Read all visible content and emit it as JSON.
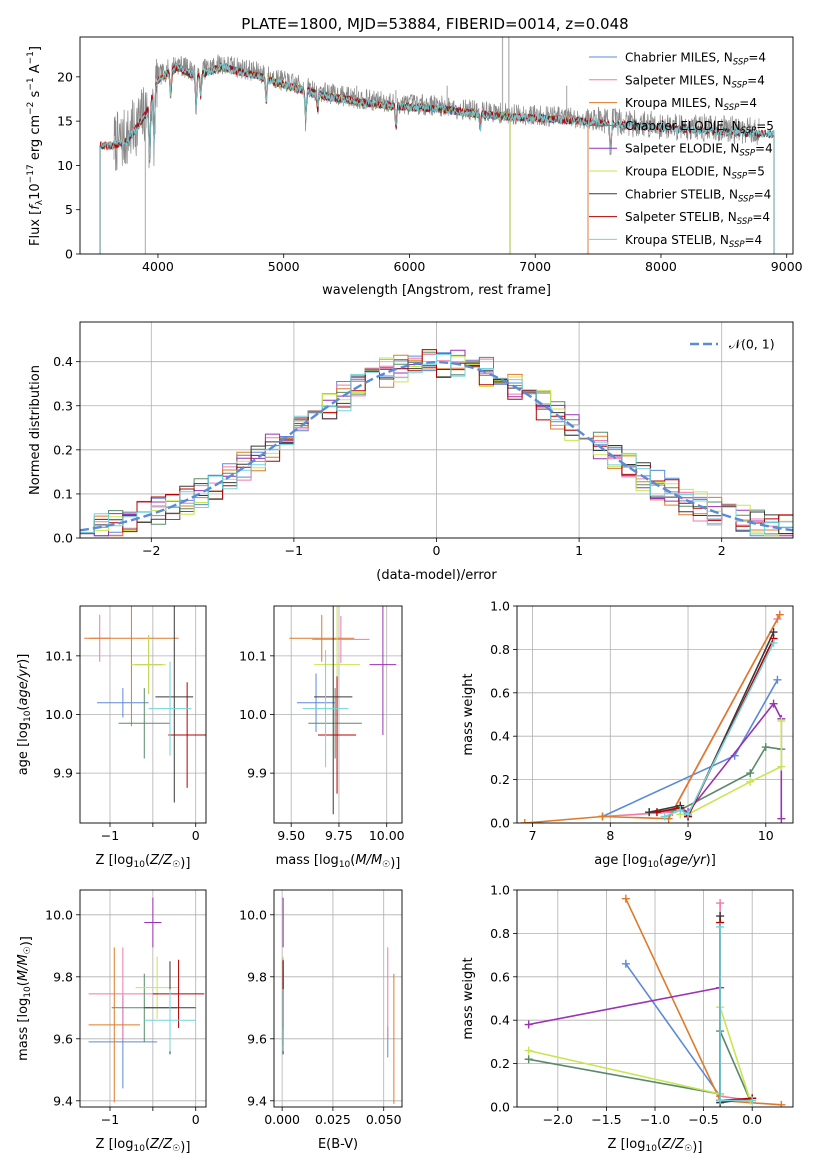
{
  "title": "PLATE=1800, MJD=53884, FIBERID=0014, z=0.048",
  "colors": {
    "Chabrier MILES": "#5b8ad8",
    "Salpeter MILES": "#f07aa8",
    "Kroupa MILES": "#e07a28",
    "Chabrier ELODIE": "#5a8a6a",
    "Salpeter ELODIE": "#9a32b4",
    "Kroupa ELODIE": "#c8e650",
    "Chabrier STELIB": "#3a3a3a",
    "Salpeter STELIB": "#b40000",
    "Kroupa STELIB": "#70d4dc",
    "data": "#888888",
    "normal": "#5b8ad8",
    "grid": "#b0b0b0"
  },
  "chart_data": [
    {
      "id": "spectrum",
      "type": "line",
      "title": "PLATE=1800, MJD=53884, FIBERID=0014, z=0.048",
      "xlabel": "wavelength [Angstrom, rest frame]",
      "ylabel": "Flux [f_λ10^-17 erg cm^-2 s^-1 A^-1]",
      "xlim": [
        3380,
        9050
      ],
      "ylim": [
        0,
        24.5
      ],
      "xticks": [
        4000,
        5000,
        6000,
        7000,
        8000,
        9000
      ],
      "yticks": [
        0,
        5,
        10,
        15,
        20
      ],
      "grid": false,
      "legend_position": "upper-right",
      "legend": [
        {
          "name": "Chabrier MILES",
          "nssp": "4"
        },
        {
          "name": "Salpeter MILES",
          "nssp": "4"
        },
        {
          "name": "Kroupa MILES",
          "nssp": "4"
        },
        {
          "name": "Chabrier ELODIE",
          "nssp": "5"
        },
        {
          "name": "Salpeter ELODIE",
          "nssp": "4"
        },
        {
          "name": "Kroupa ELODIE",
          "nssp": "5"
        },
        {
          "name": "Chabrier STELIB",
          "nssp": "4"
        },
        {
          "name": "Salpeter STELIB",
          "nssp": "4"
        },
        {
          "name": "Kroupa STELIB",
          "nssp": "4"
        }
      ],
      "data_range": [
        3650,
        8780
      ],
      "continuum": [
        [
          3650,
          12.5
        ],
        [
          3750,
          13.0
        ],
        [
          3900,
          16.0
        ],
        [
          4000,
          20.0
        ],
        [
          4150,
          21.5
        ],
        [
          4300,
          20.5
        ],
        [
          4500,
          21.5
        ],
        [
          4800,
          20.5
        ],
        [
          5000,
          19.5
        ],
        [
          5300,
          18.3
        ],
        [
          5600,
          17.5
        ],
        [
          5900,
          17.0
        ],
        [
          6200,
          16.8
        ],
        [
          6500,
          16.2
        ],
        [
          6800,
          15.8
        ],
        [
          7200,
          15.5
        ],
        [
          7600,
          15.0
        ],
        [
          8000,
          14.5
        ],
        [
          8400,
          14.2
        ],
        [
          8780,
          13.8
        ]
      ],
      "absorption_lines": [
        [
          3934,
          8
        ],
        [
          3969,
          7
        ],
        [
          4101,
          3
        ],
        [
          4304,
          4
        ],
        [
          4340,
          3
        ],
        [
          4861,
          3
        ],
        [
          5175,
          4
        ],
        [
          5270,
          2
        ],
        [
          5893,
          3
        ],
        [
          6563,
          2
        ],
        [
          7600,
          4
        ]
      ],
      "spikes": [
        [
          6740,
          24.5
        ],
        [
          6790,
          24.5
        ],
        [
          5580,
          19.0
        ],
        [
          5892,
          18.5
        ],
        [
          6300,
          19.0
        ],
        [
          7250,
          19.0
        ]
      ],
      "model_ranges": {
        "Chabrier MILES": [
          3540,
          7420
        ],
        "Salpeter MILES": [
          3540,
          7420
        ],
        "Kroupa MILES": [
          3540,
          7420
        ],
        "Chabrier ELODIE": [
          3900,
          6800
        ],
        "Salpeter ELODIE": [
          3900,
          6800
        ],
        "Kroupa ELODIE": [
          3900,
          6800
        ],
        "Chabrier STELIB": [
          3200,
          9300
        ],
        "Salpeter STELIB": [
          3200,
          9300
        ],
        "Kroupa STELIB": [
          3200,
          9300
        ]
      }
    },
    {
      "id": "residuals",
      "type": "histogram",
      "xlabel": "(data-model)/error",
      "ylabel": "Normed distribution",
      "xlim": [
        -2.5,
        2.5
      ],
      "ylim": [
        0,
        0.49
      ],
      "xticks": [
        -2,
        -1,
        0,
        1,
        2
      ],
      "yticks": [
        0.0,
        0.1,
        0.2,
        0.3,
        0.4
      ],
      "grid": true,
      "legend_position": "upper-right",
      "legend": [
        "𝒩(0, 1)"
      ],
      "bins": {
        "start": -2.5,
        "width": 0.1,
        "count": 50
      },
      "noise_amplitude": 0.035
    },
    {
      "id": "age-vs-Z",
      "type": "errorbar",
      "xlabel": "Z [log10(Z/Z☉)]",
      "ylabel": "age [log10(age/yr)]",
      "xlim": [
        -1.35,
        0.12
      ],
      "ylim": [
        9.815,
        10.185
      ],
      "xticks": [
        -1,
        -0.5,
        0
      ],
      "xticklabels": [
        "−1",
        "",
        "0"
      ],
      "yticks": [
        9.9,
        10.0,
        10.1
      ],
      "grid": true,
      "points": [
        {
          "series": "Chabrier MILES",
          "x": -0.85,
          "xerr": 0.3,
          "y": 10.02,
          "yerr": 0.025
        },
        {
          "series": "Salpeter MILES",
          "x": -1.12,
          "xerr": 0.12,
          "y": 10.13,
          "yerr": 0.04
        },
        {
          "series": "Kroupa MILES",
          "x": -0.75,
          "xerr": 0.55,
          "y": 10.13,
          "yerr": 0.15
        },
        {
          "series": "Chabrier ELODIE",
          "x": -0.6,
          "xerr": 0.3,
          "y": 9.985,
          "yerr": 0.06
        },
        {
          "series": "Salpeter ELODIE",
          "x": -0.55,
          "xerr": 0.16,
          "y": 10.085,
          "yerr": 0.05
        },
        {
          "series": "Kroupa ELODIE",
          "x": -0.55,
          "xerr": 0.2,
          "y": 10.085,
          "yerr": 0.05
        },
        {
          "series": "Chabrier STELIB",
          "x": -0.25,
          "xerr": 0.22,
          "y": 10.03,
          "yerr": 0.18
        },
        {
          "series": "Salpeter STELIB",
          "x": -0.1,
          "xerr": 0.22,
          "y": 9.965,
          "yerr": 0.09
        },
        {
          "series": "Kroupa STELIB",
          "x": -0.3,
          "xerr": 0.25,
          "y": 10.01,
          "yerr": 0.08
        }
      ]
    },
    {
      "id": "age-vs-mass",
      "type": "errorbar",
      "xlabel": "mass [log10(M/M☉)]",
      "ylabel": "",
      "xlim": [
        9.41,
        10.08
      ],
      "ylim": [
        9.815,
        10.185
      ],
      "xticks": [
        9.5,
        9.75,
        10.0
      ],
      "xticklabels": [
        "9.50",
        "9.75",
        "10.00"
      ],
      "yticks": [
        9.9,
        10.0,
        10.1
      ],
      "grid": true,
      "points": [
        {
          "series": "Chabrier MILES",
          "x": 9.63,
          "xerr": 0.1,
          "y": 10.02,
          "yerr": 0.05
        },
        {
          "series": "Salpeter MILES",
          "x": 9.76,
          "xerr": 0.15,
          "y": 10.128,
          "yerr": 0.04
        },
        {
          "series": "Kroupa MILES",
          "x": 9.66,
          "xerr": 0.17,
          "y": 10.13,
          "yerr": 0.04
        },
        {
          "series": "Chabrier ELODIE",
          "x": 9.73,
          "xerr": 0.14,
          "y": 9.985,
          "yerr": 0.06
        },
        {
          "series": "Salpeter ELODIE",
          "x": 9.98,
          "xerr": 0.07,
          "y": 10.085,
          "yerr": 0.12
        },
        {
          "series": "Kroupa ELODIE",
          "x": 9.74,
          "xerr": 0.12,
          "y": 10.085,
          "yerr": 0.15
        },
        {
          "series": "Chabrier STELIB",
          "x": 9.72,
          "xerr": 0.1,
          "y": 10.03,
          "yerr": 0.2
        },
        {
          "series": "Salpeter STELIB",
          "x": 9.74,
          "xerr": 0.1,
          "y": 9.965,
          "yerr": 0.1
        },
        {
          "series": "Kroupa STELIB",
          "x": 9.68,
          "xerr": 0.12,
          "y": 10.01,
          "yerr": 0.1
        }
      ]
    },
    {
      "id": "massweight-vs-age",
      "type": "line",
      "xlabel": "age [log10(age/yr)]",
      "ylabel": "mass weight",
      "xlim": [
        6.8,
        10.35
      ],
      "ylim": [
        0,
        1.0
      ],
      "xticks": [
        7,
        8,
        9,
        10
      ],
      "yticks": [
        0.0,
        0.2,
        0.4,
        0.6,
        0.8,
        1.0
      ],
      "grid": true,
      "series": [
        {
          "name": "Chabrier MILES",
          "x": [
            7.9,
            9.6,
            10.15
          ],
          "y": [
            0.03,
            0.31,
            0.66
          ]
        },
        {
          "name": "Salpeter MILES",
          "x": [
            7.9,
            8.8,
            10.15
          ],
          "y": [
            0.03,
            0.05,
            0.94
          ]
        },
        {
          "name": "Kroupa MILES",
          "x": [
            6.9,
            7.9,
            8.75,
            10.18
          ],
          "y": [
            0.0,
            0.03,
            0.02,
            0.96
          ]
        },
        {
          "name": "Chabrier ELODIE",
          "x": [
            8.5,
            8.9,
            9.8,
            10.0,
            10.2
          ],
          "y": [
            0.05,
            0.06,
            0.23,
            0.35,
            0.34
          ]
        },
        {
          "name": "Salpeter ELODIE",
          "x": [
            8.9,
            9.0,
            10.1,
            10.2,
            10.2
          ],
          "y": [
            0.07,
            0.05,
            0.55,
            0.48,
            0.02
          ]
        },
        {
          "name": "Kroupa ELODIE",
          "x": [
            8.9,
            9.0,
            9.8,
            10.2,
            10.2
          ],
          "y": [
            0.04,
            0.04,
            0.19,
            0.26,
            0.47
          ]
        },
        {
          "name": "Chabrier STELIB",
          "x": [
            8.5,
            8.9,
            9.0,
            10.1
          ],
          "y": [
            0.05,
            0.08,
            0.03,
            0.88
          ]
        },
        {
          "name": "Salpeter STELIB",
          "x": [
            8.6,
            8.9,
            9.0,
            10.1
          ],
          "y": [
            0.05,
            0.07,
            0.03,
            0.85
          ]
        },
        {
          "name": "Kroupa STELIB",
          "x": [
            8.7,
            8.9,
            9.0,
            10.1
          ],
          "y": [
            0.03,
            0.06,
            0.04,
            0.83
          ]
        }
      ]
    },
    {
      "id": "mass-vs-Z",
      "type": "errorbar",
      "xlabel": "Z [log10(Z/Z☉)]",
      "ylabel": "mass [log10(M/M☉)]",
      "xlim": [
        -1.35,
        0.12
      ],
      "ylim": [
        9.38,
        10.08
      ],
      "xticks": [
        -1,
        -0.5,
        0
      ],
      "xticklabels": [
        "−1",
        "",
        "0"
      ],
      "yticks": [
        9.4,
        9.6,
        9.8,
        10.0
      ],
      "grid": true,
      "points": [
        {
          "series": "Chabrier MILES",
          "x": -0.85,
          "xerr": 0.4,
          "y": 9.59,
          "yerr": 0.15
        },
        {
          "series": "Salpeter MILES",
          "x": -0.85,
          "xerr": 0.4,
          "y": 9.745,
          "yerr": 0.15
        },
        {
          "series": "Kroupa MILES",
          "x": -0.95,
          "xerr": 0.3,
          "y": 9.645,
          "yerr": 0.25
        },
        {
          "series": "Chabrier ELODIE",
          "x": -0.6,
          "xerr": 0.38,
          "y": 9.7,
          "yerr": 0.11
        },
        {
          "series": "Salpeter ELODIE",
          "x": -0.5,
          "xerr": 0.1,
          "y": 9.975,
          "yerr": 0.08
        },
        {
          "series": "Kroupa ELODIE",
          "x": -0.45,
          "xerr": 0.25,
          "y": 9.765,
          "yerr": 0.1
        },
        {
          "series": "Chabrier STELIB",
          "x": -0.3,
          "xerr": 0.3,
          "y": 9.7,
          "yerr": 0.15
        },
        {
          "series": "Salpeter STELIB",
          "x": -0.2,
          "xerr": 0.3,
          "y": 9.745,
          "yerr": 0.11
        },
        {
          "series": "Kroupa STELIB",
          "x": -0.3,
          "xerr": 0.3,
          "y": 9.66,
          "yerr": 0.1
        }
      ]
    },
    {
      "id": "mass-vs-EBV",
      "type": "errorbar",
      "xlabel": "E(B-V)",
      "ylabel": "",
      "xlim": [
        -0.004,
        0.059
      ],
      "ylim": [
        9.38,
        10.08
      ],
      "xticks": [
        0.0,
        0.025,
        0.05
      ],
      "xticklabels": [
        "0.000",
        "0.025",
        "0.050"
      ],
      "yticks": [
        9.4,
        9.6,
        9.8,
        10.0
      ],
      "grid": true,
      "points": [
        {
          "series": "Chabrier MILES",
          "x": 0.052,
          "xerr": 0,
          "y": 9.59,
          "yerr": 0.05
        },
        {
          "series": "Salpeter MILES",
          "x": 0.052,
          "xerr": 0,
          "y": 9.745,
          "yerr": 0.15
        },
        {
          "series": "Kroupa MILES",
          "x": 0.055,
          "xerr": 0,
          "y": 9.6,
          "yerr": 0.21
        },
        {
          "series": "Chabrier ELODIE",
          "x": 0.0005,
          "xerr": 0,
          "y": 9.7,
          "yerr": 0.12
        },
        {
          "series": "Salpeter ELODIE",
          "x": 0.0005,
          "xerr": 0,
          "y": 9.975,
          "yerr": 0.08
        },
        {
          "series": "Kroupa ELODIE",
          "x": 0.0005,
          "xerr": 0,
          "y": 9.765,
          "yerr": 0.1
        },
        {
          "series": "Chabrier STELIB",
          "x": 0.0005,
          "xerr": 0,
          "y": 9.7,
          "yerr": 0.15
        },
        {
          "series": "Salpeter STELIB",
          "x": 0.0005,
          "xerr": 0,
          "y": 9.745,
          "yerr": 0.11
        },
        {
          "series": "Kroupa STELIB",
          "x": 0.0005,
          "xerr": 0,
          "y": 9.66,
          "yerr": 0.1
        }
      ]
    },
    {
      "id": "massweight-vs-Z",
      "type": "line",
      "xlabel": "Z [log10(Z/Z☉)]",
      "ylabel": "mass weight",
      "xlim": [
        -2.42,
        0.42
      ],
      "ylim": [
        0,
        1.0
      ],
      "xticks": [
        -2.0,
        -1.5,
        -1.0,
        -0.5,
        0.0
      ],
      "xticklabels": [
        "−2.0",
        "−1.5",
        "−1.0",
        "−0.5",
        "0.0"
      ],
      "yticks": [
        0.0,
        0.2,
        0.4,
        0.6,
        0.8,
        1.0
      ],
      "grid": true,
      "series": [
        {
          "name": "Chabrier MILES",
          "x": [
            -1.3,
            -0.33,
            -0.33
          ],
          "y": [
            0.66,
            0.05,
            0.03
          ]
        },
        {
          "name": "Salpeter MILES",
          "x": [
            -0.33,
            -0.33,
            0.0
          ],
          "y": [
            0.94,
            0.05,
            0.03
          ]
        },
        {
          "name": "Kroupa MILES",
          "x": [
            -1.3,
            -0.33,
            0.3
          ],
          "y": [
            0.96,
            0.03,
            0.01
          ]
        },
        {
          "name": "Chabrier ELODIE",
          "x": [
            -2.3,
            -0.33,
            -0.33,
            -0.02
          ],
          "y": [
            0.22,
            0.06,
            0.35,
            0.03
          ]
        },
        {
          "name": "Salpeter ELODIE",
          "x": [
            -2.3,
            -0.33
          ],
          "y": [
            0.38,
            0.55
          ]
        },
        {
          "name": "Kroupa ELODIE",
          "x": [
            -2.3,
            -0.33,
            -0.33,
            -0.02
          ],
          "y": [
            0.26,
            0.06,
            0.46,
            0.03
          ]
        },
        {
          "name": "Chabrier STELIB",
          "x": [
            -0.33,
            -0.33,
            0.0
          ],
          "y": [
            0.88,
            0.02,
            0.04
          ]
        },
        {
          "name": "Salpeter STELIB",
          "x": [
            -0.33,
            -0.33,
            0.0
          ],
          "y": [
            0.85,
            0.03,
            0.04
          ]
        },
        {
          "name": "Kroupa STELIB",
          "x": [
            -0.33,
            -0.33,
            0.0
          ],
          "y": [
            0.83,
            0.03,
            0.03
          ]
        }
      ]
    }
  ]
}
